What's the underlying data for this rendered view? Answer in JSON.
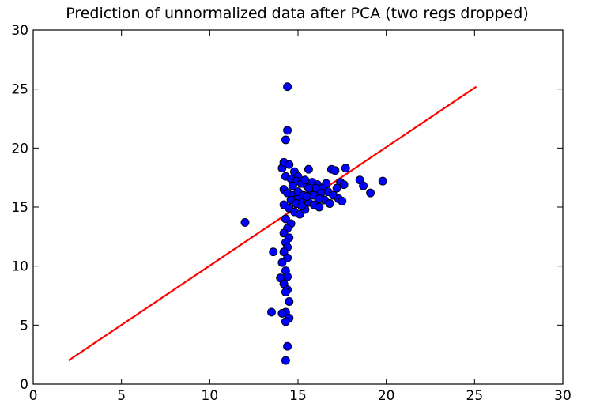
{
  "chart_data": {
    "type": "scatter",
    "title": "Prediction of unnormalized data after PCA (two regs dropped)",
    "xlabel": "",
    "ylabel": "",
    "xlim": [
      0,
      30
    ],
    "ylim": [
      0,
      30
    ],
    "xticks": [
      0,
      5,
      10,
      15,
      20,
      25,
      30
    ],
    "yticks": [
      0,
      5,
      10,
      15,
      20,
      25,
      30
    ],
    "grid": false,
    "marker_color": "#0000ff",
    "line_color": "#ff0000",
    "points": [
      [
        14.4,
        25.2
      ],
      [
        14.4,
        21.5
      ],
      [
        14.3,
        20.7
      ],
      [
        12.0,
        13.7
      ],
      [
        13.5,
        6.1
      ],
      [
        13.6,
        11.2
      ],
      [
        14.1,
        18.3
      ],
      [
        14.2,
        18.8
      ],
      [
        14.5,
        18.6
      ],
      [
        14.8,
        18.0
      ],
      [
        15.0,
        17.6
      ],
      [
        15.6,
        18.2
      ],
      [
        14.3,
        17.6
      ],
      [
        14.6,
        17.4
      ],
      [
        14.9,
        17.2
      ],
      [
        15.2,
        17.0
      ],
      [
        15.5,
        16.8
      ],
      [
        15.8,
        17.1
      ],
      [
        16.1,
        16.9
      ],
      [
        16.4,
        16.6
      ],
      [
        16.7,
        16.3
      ],
      [
        17.0,
        16.0
      ],
      [
        17.3,
        15.7
      ],
      [
        17.5,
        15.5
      ],
      [
        14.2,
        16.5
      ],
      [
        14.4,
        16.2
      ],
      [
        14.7,
        16.0
      ],
      [
        15.0,
        15.8
      ],
      [
        15.3,
        15.6
      ],
      [
        15.6,
        15.4
      ],
      [
        15.9,
        15.2
      ],
      [
        16.2,
        15.0
      ],
      [
        16.5,
        15.6
      ],
      [
        16.8,
        15.3
      ],
      [
        14.2,
        15.2
      ],
      [
        14.5,
        14.9
      ],
      [
        14.8,
        14.6
      ],
      [
        15.1,
        14.4
      ],
      [
        15.4,
        14.8
      ],
      [
        15.7,
        16.4
      ],
      [
        16.0,
        16.6
      ],
      [
        16.3,
        16.2
      ],
      [
        14.3,
        14.0
      ],
      [
        14.6,
        13.6
      ],
      [
        14.4,
        13.2
      ],
      [
        14.2,
        12.8
      ],
      [
        14.5,
        12.4
      ],
      [
        14.3,
        12.0
      ],
      [
        14.4,
        11.6
      ],
      [
        14.2,
        11.2
      ],
      [
        14.4,
        10.7
      ],
      [
        14.1,
        10.3
      ],
      [
        14.3,
        9.6
      ],
      [
        14.0,
        9.0
      ],
      [
        14.4,
        9.1
      ],
      [
        14.2,
        8.5
      ],
      [
        14.4,
        8.0
      ],
      [
        14.3,
        7.8
      ],
      [
        14.5,
        7.0
      ],
      [
        14.3,
        6.1
      ],
      [
        14.1,
        6.0
      ],
      [
        14.5,
        5.6
      ],
      [
        14.3,
        5.3
      ],
      [
        14.4,
        3.2
      ],
      [
        14.3,
        2.0
      ],
      [
        16.9,
        18.2
      ],
      [
        17.1,
        18.1
      ],
      [
        17.7,
        18.3
      ],
      [
        17.4,
        17.1
      ],
      [
        17.2,
        16.6
      ],
      [
        17.6,
        16.9
      ],
      [
        18.5,
        17.3
      ],
      [
        18.7,
        16.8
      ],
      [
        19.1,
        16.2
      ],
      [
        19.8,
        17.2
      ],
      [
        15.0,
        16.3
      ],
      [
        15.3,
        16.0
      ],
      [
        15.6,
        16.6
      ],
      [
        15.9,
        16.0
      ],
      [
        16.2,
        15.7
      ],
      [
        14.6,
        15.6
      ],
      [
        14.9,
        15.3
      ],
      [
        15.2,
        15.1
      ],
      [
        15.5,
        15.9
      ],
      [
        14.7,
        16.8
      ],
      [
        15.4,
        17.3
      ],
      [
        16.6,
        17.0
      ]
    ],
    "fit_line": {
      "x": [
        2.0,
        25.1
      ],
      "y": [
        2.0,
        25.2
      ]
    }
  }
}
